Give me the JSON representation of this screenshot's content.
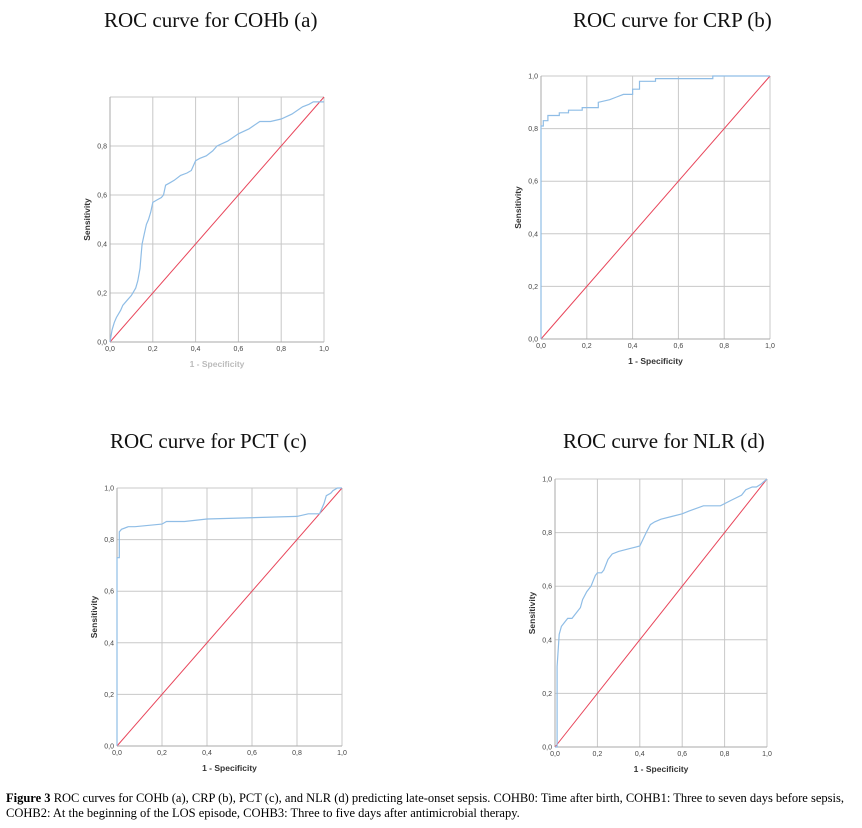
{
  "colors": {
    "roc": "#8fbde6",
    "reference": "#e8455a",
    "grid": "#c8c8c8",
    "frame": "#aaaaaa"
  },
  "chart_data": [
    {
      "type": "line",
      "title": "ROC curve for COHb (a)",
      "xlabel": "1 - Specificity",
      "ylabel": "Sensitivity",
      "xlim": [
        0,
        1
      ],
      "ylim": [
        0,
        1
      ],
      "x_ticks": [
        "0,0",
        "0,2",
        "0,4",
        "0,6",
        "0,8",
        "1,0"
      ],
      "y_ticks": [
        "0,0",
        "0,2",
        "0,4",
        "0,6",
        "0,8",
        ""
      ],
      "grid": true,
      "series": [
        {
          "x": [
            0,
            0.01,
            0.02,
            0.03,
            0.05,
            0.06,
            0.08,
            0.1,
            0.12,
            0.13,
            0.14,
            0.145,
            0.15,
            0.16,
            0.17,
            0.18,
            0.19,
            0.2,
            0.22,
            0.24,
            0.25,
            0.26,
            0.28,
            0.3,
            0.33,
            0.36,
            0.38,
            0.4,
            0.42,
            0.45,
            0.48,
            0.5,
            0.55,
            0.6,
            0.65,
            0.7,
            0.75,
            0.8,
            0.85,
            0.9,
            0.93,
            0.95,
            1
          ],
          "y": [
            0,
            0.05,
            0.08,
            0.1,
            0.13,
            0.15,
            0.17,
            0.19,
            0.22,
            0.25,
            0.3,
            0.35,
            0.4,
            0.44,
            0.48,
            0.5,
            0.53,
            0.57,
            0.58,
            0.59,
            0.6,
            0.64,
            0.65,
            0.66,
            0.68,
            0.69,
            0.7,
            0.74,
            0.75,
            0.76,
            0.78,
            0.8,
            0.82,
            0.85,
            0.87,
            0.9,
            0.9,
            0.91,
            0.93,
            0.96,
            0.97,
            0.98,
            0.98
          ]
        },
        {
          "x": [
            0,
            1
          ],
          "y": [
            0,
            1
          ]
        }
      ]
    },
    {
      "type": "line",
      "title": "ROC curve for CRP (b)",
      "xlabel": "1 - Specificity",
      "ylabel": "Sensitivity",
      "xlim": [
        0,
        1
      ],
      "ylim": [
        0,
        1
      ],
      "x_ticks": [
        "0,0",
        "0,2",
        "0,4",
        "0,6",
        "0,8",
        "1,0"
      ],
      "y_ticks": [
        "0,0",
        "0,2",
        "0,4",
        "0,6",
        "0,8",
        "1,0"
      ],
      "grid": true,
      "series": [
        {
          "x": [
            0,
            0,
            0.01,
            0.01,
            0.03,
            0.03,
            0.08,
            0.08,
            0.12,
            0.12,
            0.18,
            0.18,
            0.25,
            0.25,
            0.3,
            0.33,
            0.36,
            0.4,
            0.4,
            0.43,
            0.43,
            0.5,
            0.5,
            0.7,
            0.75,
            0.75,
            1
          ],
          "y": [
            0,
            0.81,
            0.81,
            0.83,
            0.83,
            0.85,
            0.85,
            0.86,
            0.86,
            0.87,
            0.87,
            0.88,
            0.88,
            0.9,
            0.91,
            0.92,
            0.93,
            0.93,
            0.95,
            0.95,
            0.98,
            0.98,
            0.99,
            0.99,
            0.99,
            1,
            1
          ]
        },
        {
          "x": [
            0,
            1
          ],
          "y": [
            0,
            1
          ]
        }
      ]
    },
    {
      "type": "line",
      "title": "ROC curve for PCT (c)",
      "xlabel": "1 - Specificity",
      "ylabel": "Sensitivity",
      "xlim": [
        0,
        1
      ],
      "ylim": [
        0,
        1
      ],
      "x_ticks": [
        "0,0",
        "0,2",
        "0,4",
        "0,6",
        "0,8",
        "1,0"
      ],
      "y_ticks": [
        "0,0",
        "0,2",
        "0,4",
        "0,6",
        "0,8",
        "1,0"
      ],
      "grid": true,
      "series": [
        {
          "x": [
            0,
            0,
            0.01,
            0.01,
            0.02,
            0.05,
            0.08,
            0.2,
            0.22,
            0.25,
            0.3,
            0.4,
            0.8,
            0.85,
            0.9,
            0.91,
            0.92,
            0.93,
            0.95,
            0.96,
            0.98,
            1
          ],
          "y": [
            0,
            0.73,
            0.73,
            0.83,
            0.84,
            0.85,
            0.85,
            0.86,
            0.87,
            0.87,
            0.87,
            0.88,
            0.89,
            0.9,
            0.9,
            0.92,
            0.94,
            0.97,
            0.98,
            0.99,
            1,
            1
          ]
        },
        {
          "x": [
            0,
            1
          ],
          "y": [
            0,
            1
          ]
        }
      ]
    },
    {
      "type": "line",
      "title": "ROC curve for NLR (d)",
      "xlabel": "1 - Specificity",
      "ylabel": "Sensitivity",
      "xlim": [
        0,
        1
      ],
      "ylim": [
        0,
        1
      ],
      "x_ticks": [
        "0,0",
        "0,2",
        "0,4",
        "0,6",
        "0,8",
        "1,0"
      ],
      "y_ticks": [
        "0,0",
        "0,2",
        "0,4",
        "0,6",
        "0,8",
        "1,0"
      ],
      "grid": true,
      "series": [
        {
          "x": [
            0,
            0.01,
            0.01,
            0.02,
            0.03,
            0.05,
            0.06,
            0.08,
            0.1,
            0.12,
            0.13,
            0.15,
            0.17,
            0.19,
            0.2,
            0.22,
            0.23,
            0.25,
            0.27,
            0.3,
            0.35,
            0.4,
            0.43,
            0.45,
            0.47,
            0.5,
            0.55,
            0.6,
            0.63,
            0.7,
            0.75,
            0.78,
            0.83,
            0.88,
            0.9,
            0.93,
            0.95,
            0.97,
            1
          ],
          "y": [
            0,
            0,
            0.3,
            0.42,
            0.45,
            0.47,
            0.48,
            0.48,
            0.5,
            0.52,
            0.55,
            0.58,
            0.6,
            0.64,
            0.65,
            0.65,
            0.66,
            0.7,
            0.72,
            0.73,
            0.74,
            0.75,
            0.8,
            0.83,
            0.84,
            0.85,
            0.86,
            0.87,
            0.88,
            0.9,
            0.9,
            0.9,
            0.92,
            0.94,
            0.96,
            0.97,
            0.97,
            0.98,
            1
          ]
        },
        {
          "x": [
            0,
            1
          ],
          "y": [
            0,
            1
          ]
        }
      ]
    }
  ],
  "caption": {
    "label": "Figure 3",
    "text": " ROC curves for COHb (a), CRP (b), PCT (c), and NLR (d) predicting late-onset sepsis. COHB0: Time after birth, COHB1: Three to seven days before sepsis, COHB2: At the beginning of the LOS episode, COHB3: Three to five days after antimicrobial therapy."
  }
}
